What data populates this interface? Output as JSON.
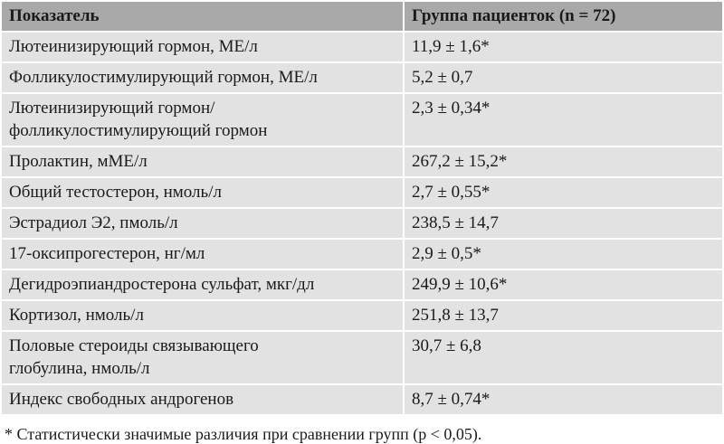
{
  "header": {
    "columns": [
      "Показатель",
      "Группа пациенток (n = 72)"
    ]
  },
  "table": {
    "rows": [
      [
        "Лютеинизирующий гормон, МЕ/л",
        "11,9 ± 1,6*"
      ],
      [
        "Фолликулостимулирующий гормон, МЕ/л",
        "5,2 ± 0,7"
      ],
      [
        "Лютеинизирующий гормон/\nфолликулостимулирующий гормон",
        "2,3 ± 0,34*"
      ],
      [
        "Пролактин, мМЕ/л",
        "267,2 ± 15,2*"
      ],
      [
        "Общий тестостерон, нмоль/л",
        "2,7 ± 0,55*"
      ],
      [
        "Эстрадиол Э2, пмоль/л",
        "238,5 ± 14,7"
      ],
      [
        "17-оксипрогестерон, нг/мл",
        "2,9 ± 0,5*"
      ],
      [
        "Дегидроэпиандростерона сульфат, мкг/дл",
        "249,9 ± 10,6*"
      ],
      [
        "Кортизол, нмоль/л",
        "251,8 ± 13,7"
      ],
      [
        "Половые стероиды связывающего\nглобулина, нмоль/л",
        "30,7 ± 6,8"
      ],
      [
        "Индекс свободных андрогенов",
        "8,7 ± 0,74*"
      ]
    ]
  },
  "footnote": "* Статистически значимые различия при сравнении групп (p < 0,05)."
}
